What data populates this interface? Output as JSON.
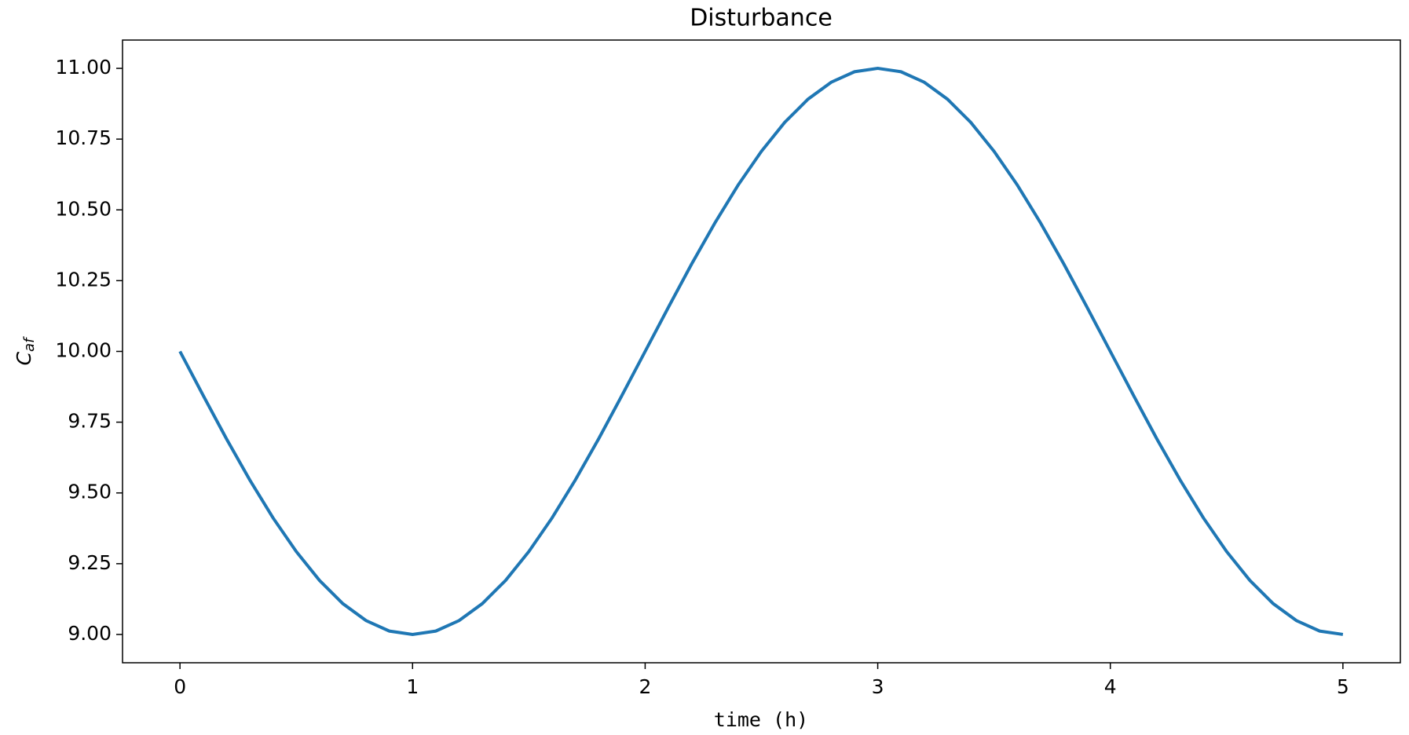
{
  "chart_data": {
    "type": "line",
    "title": "Disturbance",
    "xlabel": "time (h)",
    "ylabel": "C",
    "ylabel_sub": "af",
    "x": [
      0,
      0.1,
      0.2,
      0.3,
      0.4,
      0.5,
      0.6,
      0.7,
      0.8,
      0.9,
      1,
      1.1,
      1.2,
      1.3,
      1.4,
      1.5,
      1.6,
      1.7,
      1.8,
      1.9,
      2,
      2.1,
      2.2,
      2.3,
      2.4,
      2.5,
      2.6,
      2.7,
      2.8,
      2.9,
      3,
      3.1,
      3.2,
      3.3,
      3.4,
      3.5,
      3.6,
      3.7,
      3.8,
      3.9,
      4,
      4.1,
      4.2,
      4.3,
      4.4,
      4.5,
      4.6,
      4.7,
      4.8,
      4.9,
      5
    ],
    "series": [
      {
        "color": "#1f77b4",
        "values": [
          10,
          9.844,
          9.691,
          9.546,
          9.412,
          9.293,
          9.191,
          9.109,
          9.049,
          9.012,
          9,
          9.012,
          9.049,
          9.109,
          9.191,
          9.293,
          9.412,
          9.546,
          9.691,
          9.844,
          10,
          10.156,
          10.309,
          10.454,
          10.588,
          10.707,
          10.809,
          10.891,
          10.951,
          10.988,
          11,
          10.988,
          10.951,
          10.891,
          10.809,
          10.707,
          10.588,
          10.454,
          10.309,
          10.156,
          10,
          9.844,
          9.691,
          9.546,
          9.412,
          9.293,
          9.191,
          9.109,
          9.049,
          9.012,
          9
        ]
      }
    ],
    "xlim": [
      -0.247,
      5.247
    ],
    "ylim": [
      8.9,
      11.1
    ],
    "xticks": [
      0,
      1,
      2,
      3,
      4,
      5
    ],
    "yticks": [
      {
        "value": 9,
        "label": "9.00"
      },
      {
        "value": 9.25,
        "label": "9.25"
      },
      {
        "value": 9.5,
        "label": "9.50"
      },
      {
        "value": 9.75,
        "label": "9.75"
      },
      {
        "value": 10,
        "label": "10.00"
      },
      {
        "value": 10.25,
        "label": "10.25"
      },
      {
        "value": 10.5,
        "label": "10.50"
      },
      {
        "value": 10.75,
        "label": "10.75"
      },
      {
        "value": 11,
        "label": "11.00"
      }
    ],
    "grid": false
  }
}
